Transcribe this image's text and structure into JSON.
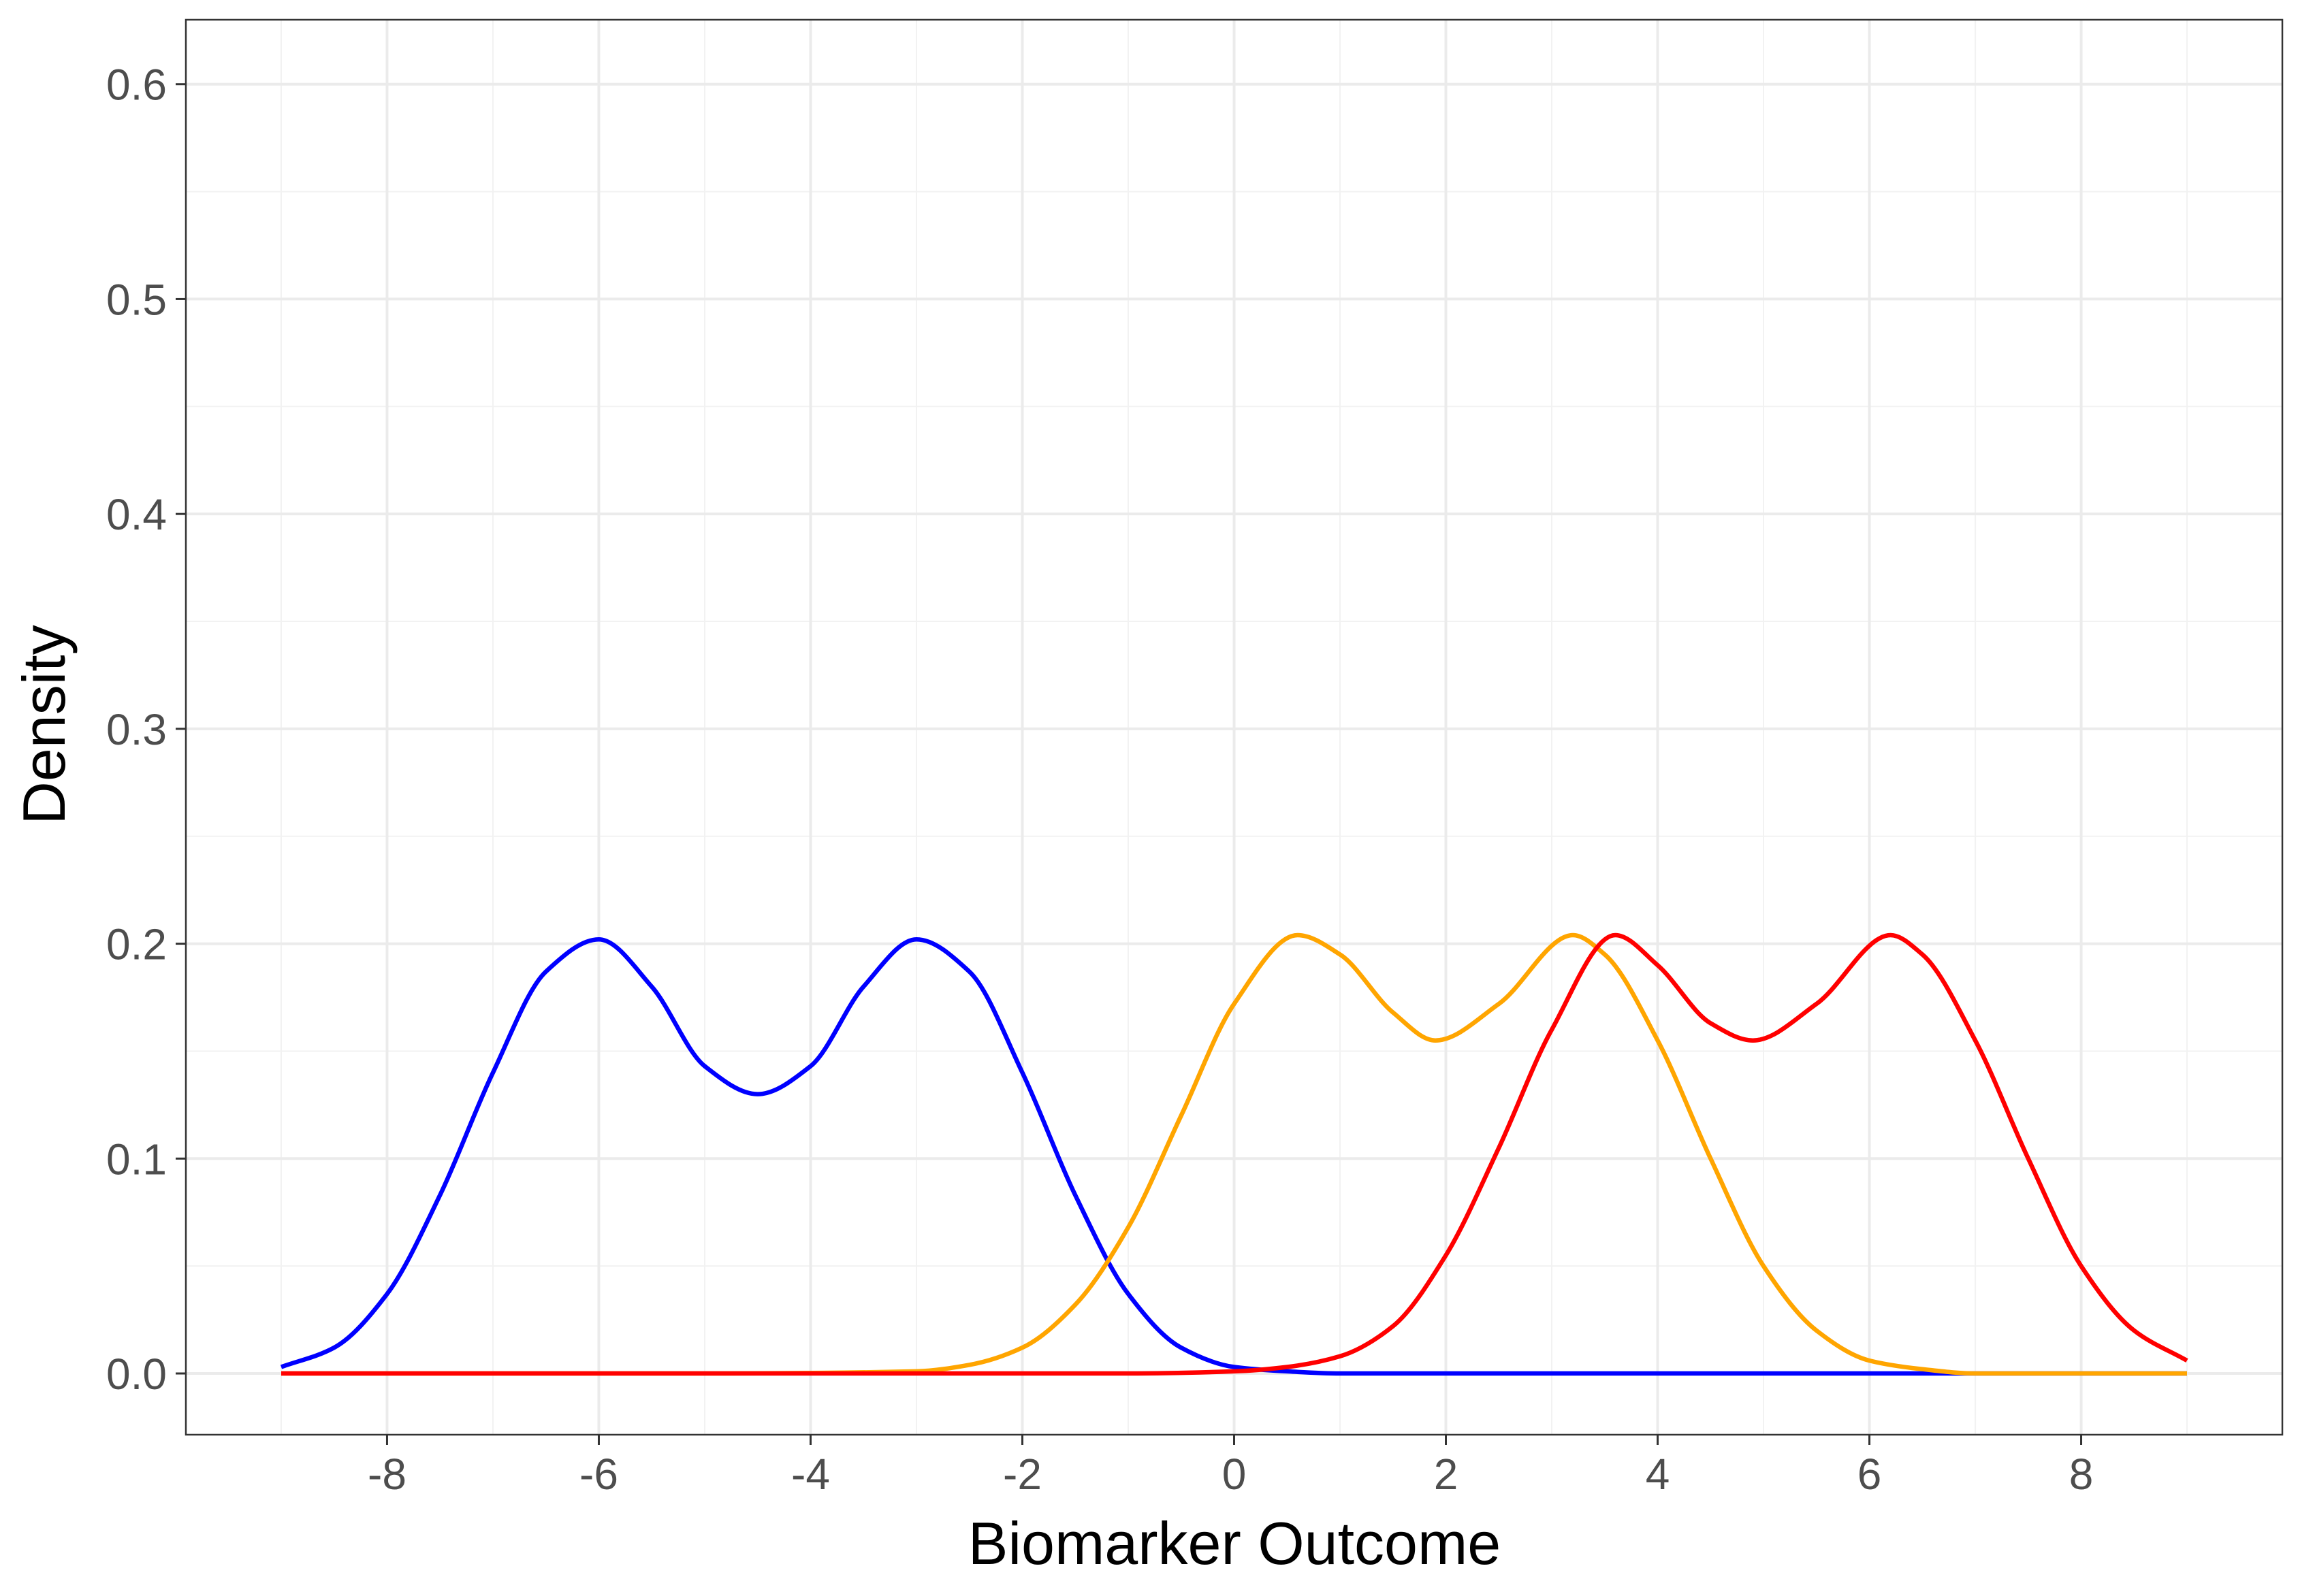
{
  "chart_data": {
    "type": "line",
    "title": "",
    "xlabel": "Biomarker Outcome",
    "ylabel": "Density",
    "xlim": [
      -9.9,
      9.9
    ],
    "ylim": [
      -0.0285,
      0.63
    ],
    "x_ticks": [
      -8,
      -6,
      -4,
      -2,
      0,
      2,
      4,
      6,
      8
    ],
    "x_tick_labels": [
      "-8",
      "-6",
      "-4",
      "-2",
      "0",
      "2",
      "4",
      "6",
      "8"
    ],
    "y_ticks": [
      0.0,
      0.1,
      0.2,
      0.3,
      0.4,
      0.5,
      0.6
    ],
    "y_tick_labels": [
      "0.0",
      "0.1",
      "0.2",
      "0.3",
      "0.4",
      "0.5",
      "0.6"
    ],
    "grid": true,
    "legend": "none",
    "series": [
      {
        "color": "#0000ff",
        "x": [
          -9,
          -8.5,
          -8,
          -7.5,
          -7,
          -6.5,
          -6,
          -5.5,
          -5,
          -4.5,
          -4,
          -3.5,
          -3,
          -2.5,
          -2,
          -1.5,
          -1,
          -0.5,
          0,
          0.5,
          1,
          2,
          3,
          4,
          5,
          6,
          7,
          8,
          9
        ],
        "y": [
          0.003,
          0.012,
          0.037,
          0.083,
          0.14,
          0.187,
          0.202,
          0.18,
          0.143,
          0.13,
          0.143,
          0.18,
          0.202,
          0.187,
          0.14,
          0.083,
          0.037,
          0.012,
          0.003,
          0.001,
          0.0,
          0.0,
          0.0,
          0.0,
          0.0,
          0.0,
          0.0,
          0.0,
          0.0
        ]
      },
      {
        "color": "#ffa500",
        "x": [
          -9,
          -5,
          -3,
          -2.5,
          -2,
          -1.5,
          -1,
          -0.5,
          0,
          0.6,
          1,
          1.5,
          1.9,
          2.5,
          3.2,
          3.5,
          4,
          4.5,
          5,
          5.5,
          6,
          6.5,
          7,
          8,
          9
        ],
        "y": [
          0.0,
          0.0,
          0.001,
          0.004,
          0.012,
          0.032,
          0.068,
          0.12,
          0.172,
          0.204,
          0.195,
          0.168,
          0.155,
          0.172,
          0.204,
          0.195,
          0.155,
          0.1,
          0.05,
          0.02,
          0.006,
          0.002,
          0.0,
          0.0,
          0.0
        ]
      },
      {
        "color": "#ff0000",
        "x": [
          -9,
          -2,
          -1,
          0,
          0.5,
          1,
          1.5,
          2,
          2.5,
          3,
          3.6,
          4,
          4.5,
          4.9,
          5.5,
          6.2,
          6.5,
          7,
          7.5,
          8,
          8.5,
          9
        ],
        "y": [
          0.0,
          0.0,
          0.0,
          0.001,
          0.003,
          0.008,
          0.022,
          0.055,
          0.105,
          0.16,
          0.204,
          0.19,
          0.163,
          0.155,
          0.172,
          0.204,
          0.195,
          0.155,
          0.1,
          0.05,
          0.02,
          0.006
        ]
      }
    ]
  }
}
